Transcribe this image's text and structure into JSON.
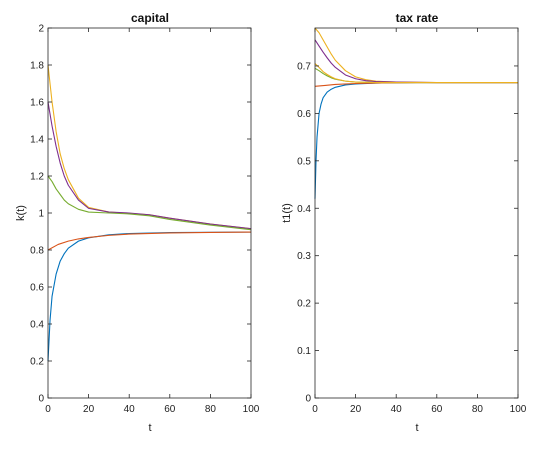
{
  "chart_data": [
    {
      "type": "line",
      "title": "capital",
      "xlabel": "t",
      "ylabel": "k(t)",
      "xlim": [
        0,
        100
      ],
      "ylim": [
        0,
        2
      ],
      "xticks": [
        "0",
        "20",
        "40",
        "60",
        "80",
        "100"
      ],
      "yticks": [
        "0",
        "0.2",
        "0.4",
        "0.6",
        "0.8",
        "1",
        "1.2",
        "1.4",
        "1.6",
        "1.8",
        "2"
      ],
      "grid": false,
      "legend": "none",
      "series": [
        {
          "color": "#0072BD",
          "x": [
            0,
            1,
            2,
            4,
            6,
            8,
            10,
            15,
            20,
            30,
            40,
            60,
            80,
            100
          ],
          "y": [
            0.2,
            0.42,
            0.55,
            0.67,
            0.74,
            0.78,
            0.81,
            0.848,
            0.866,
            0.882,
            0.889,
            0.894,
            0.896,
            0.897
          ]
        },
        {
          "color": "#D95319",
          "x": [
            0,
            5,
            10,
            15,
            20,
            30,
            40,
            60,
            80,
            100
          ],
          "y": [
            0.8,
            0.83,
            0.848,
            0.86,
            0.868,
            0.879,
            0.886,
            0.892,
            0.895,
            0.897
          ]
        },
        {
          "color": "#EDB120",
          "x": [
            0,
            2,
            4,
            6,
            8,
            10,
            15,
            20,
            30,
            40,
            50,
            60,
            80,
            100
          ],
          "y": [
            1.8,
            1.6,
            1.44,
            1.32,
            1.24,
            1.18,
            1.08,
            1.03,
            1.005,
            0.998,
            0.99,
            0.972,
            0.94,
            0.915
          ]
        },
        {
          "color": "#7E2F8E",
          "x": [
            0,
            2,
            4,
            6,
            8,
            10,
            15,
            20,
            30,
            40,
            50,
            60,
            80,
            100
          ],
          "y": [
            1.6,
            1.47,
            1.36,
            1.27,
            1.2,
            1.15,
            1.07,
            1.025,
            1.005,
            1.0,
            0.99,
            0.972,
            0.94,
            0.915
          ]
        },
        {
          "color": "#77AC30",
          "x": [
            0,
            2,
            4,
            6,
            8,
            10,
            15,
            20,
            30,
            40,
            50,
            60,
            80,
            100
          ],
          "y": [
            1.2,
            1.17,
            1.13,
            1.1,
            1.07,
            1.05,
            1.02,
            1.005,
            1.0,
            0.995,
            0.985,
            0.965,
            0.935,
            0.91
          ]
        }
      ]
    },
    {
      "type": "line",
      "title": "tax rate",
      "xlabel": "t",
      "ylabel": "t1(t)",
      "xlim": [
        0,
        100
      ],
      "ylim": [
        0,
        0.78
      ],
      "xticks": [
        "0",
        "20",
        "40",
        "60",
        "80",
        "100"
      ],
      "yticks": [
        "0",
        "0.1",
        "0.2",
        "0.3",
        "0.4",
        "0.5",
        "0.6",
        "0.7"
      ],
      "grid": false,
      "legend": "none",
      "series": [
        {
          "color": "#0072BD",
          "x": [
            0,
            0.5,
            1,
            2,
            3,
            4,
            6,
            8,
            10,
            15,
            20,
            30,
            50,
            100
          ],
          "y": [
            0.42,
            0.5,
            0.55,
            0.6,
            0.62,
            0.633,
            0.645,
            0.651,
            0.655,
            0.66,
            0.662,
            0.664,
            0.665,
            0.665
          ]
        },
        {
          "color": "#D95319",
          "x": [
            0,
            5,
            10,
            20,
            30,
            50,
            100
          ],
          "y": [
            0.657,
            0.659,
            0.661,
            0.663,
            0.664,
            0.665,
            0.665
          ]
        },
        {
          "color": "#EDB120",
          "x": [
            0,
            2,
            4,
            6,
            8,
            10,
            15,
            20,
            25,
            30,
            40,
            60,
            100
          ],
          "y": [
            0.78,
            0.77,
            0.755,
            0.74,
            0.725,
            0.712,
            0.69,
            0.677,
            0.671,
            0.668,
            0.666,
            0.665,
            0.665
          ]
        },
        {
          "color": "#7E2F8E",
          "x": [
            0,
            2,
            4,
            6,
            8,
            10,
            15,
            20,
            25,
            30,
            40,
            60,
            100
          ],
          "y": [
            0.755,
            0.742,
            0.729,
            0.717,
            0.706,
            0.697,
            0.681,
            0.673,
            0.669,
            0.667,
            0.666,
            0.665,
            0.665
          ]
        },
        {
          "color": "#77AC30",
          "x": [
            0,
            2,
            4,
            6,
            8,
            10,
            15,
            20,
            30,
            50,
            100
          ],
          "y": [
            0.695,
            0.69,
            0.684,
            0.679,
            0.675,
            0.672,
            0.668,
            0.666,
            0.665,
            0.665,
            0.665
          ]
        },
        {
          "color": "#EDB120",
          "x": [
            0,
            2,
            4,
            6,
            8,
            10,
            15,
            20,
            30,
            50,
            100
          ],
          "y": [
            0.705,
            0.697,
            0.688,
            0.682,
            0.677,
            0.673,
            0.668,
            0.666,
            0.665,
            0.665,
            0.665
          ]
        }
      ]
    }
  ]
}
